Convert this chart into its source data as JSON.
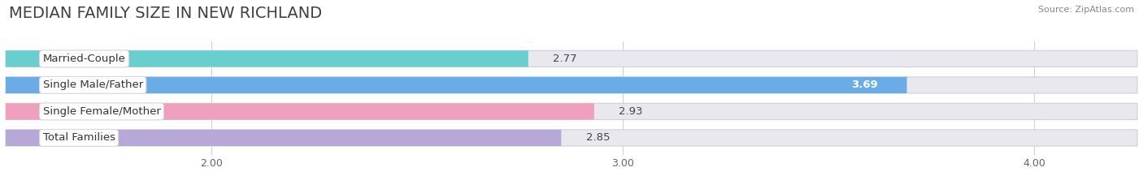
{
  "title": "MEDIAN FAMILY SIZE IN NEW RICHLAND",
  "source": "Source: ZipAtlas.com",
  "categories": [
    "Married-Couple",
    "Single Male/Father",
    "Single Female/Mother",
    "Total Families"
  ],
  "values": [
    2.77,
    3.69,
    2.93,
    2.85
  ],
  "bar_colors": [
    "#68cece",
    "#6aace8",
    "#f0a0be",
    "#b8a8d8"
  ],
  "xlim_min": 1.5,
  "xlim_max": 4.25,
  "data_min": 1.5,
  "data_max": 4.25,
  "xticks": [
    2.0,
    3.0,
    4.0
  ],
  "xtick_labels": [
    "2.00",
    "3.00",
    "4.00"
  ],
  "label_fontsize": 9.5,
  "value_fontsize": 9.5,
  "title_fontsize": 14,
  "bar_height": 0.62,
  "background_color": "#ffffff",
  "bg_bar_color": "#e8e8ee"
}
